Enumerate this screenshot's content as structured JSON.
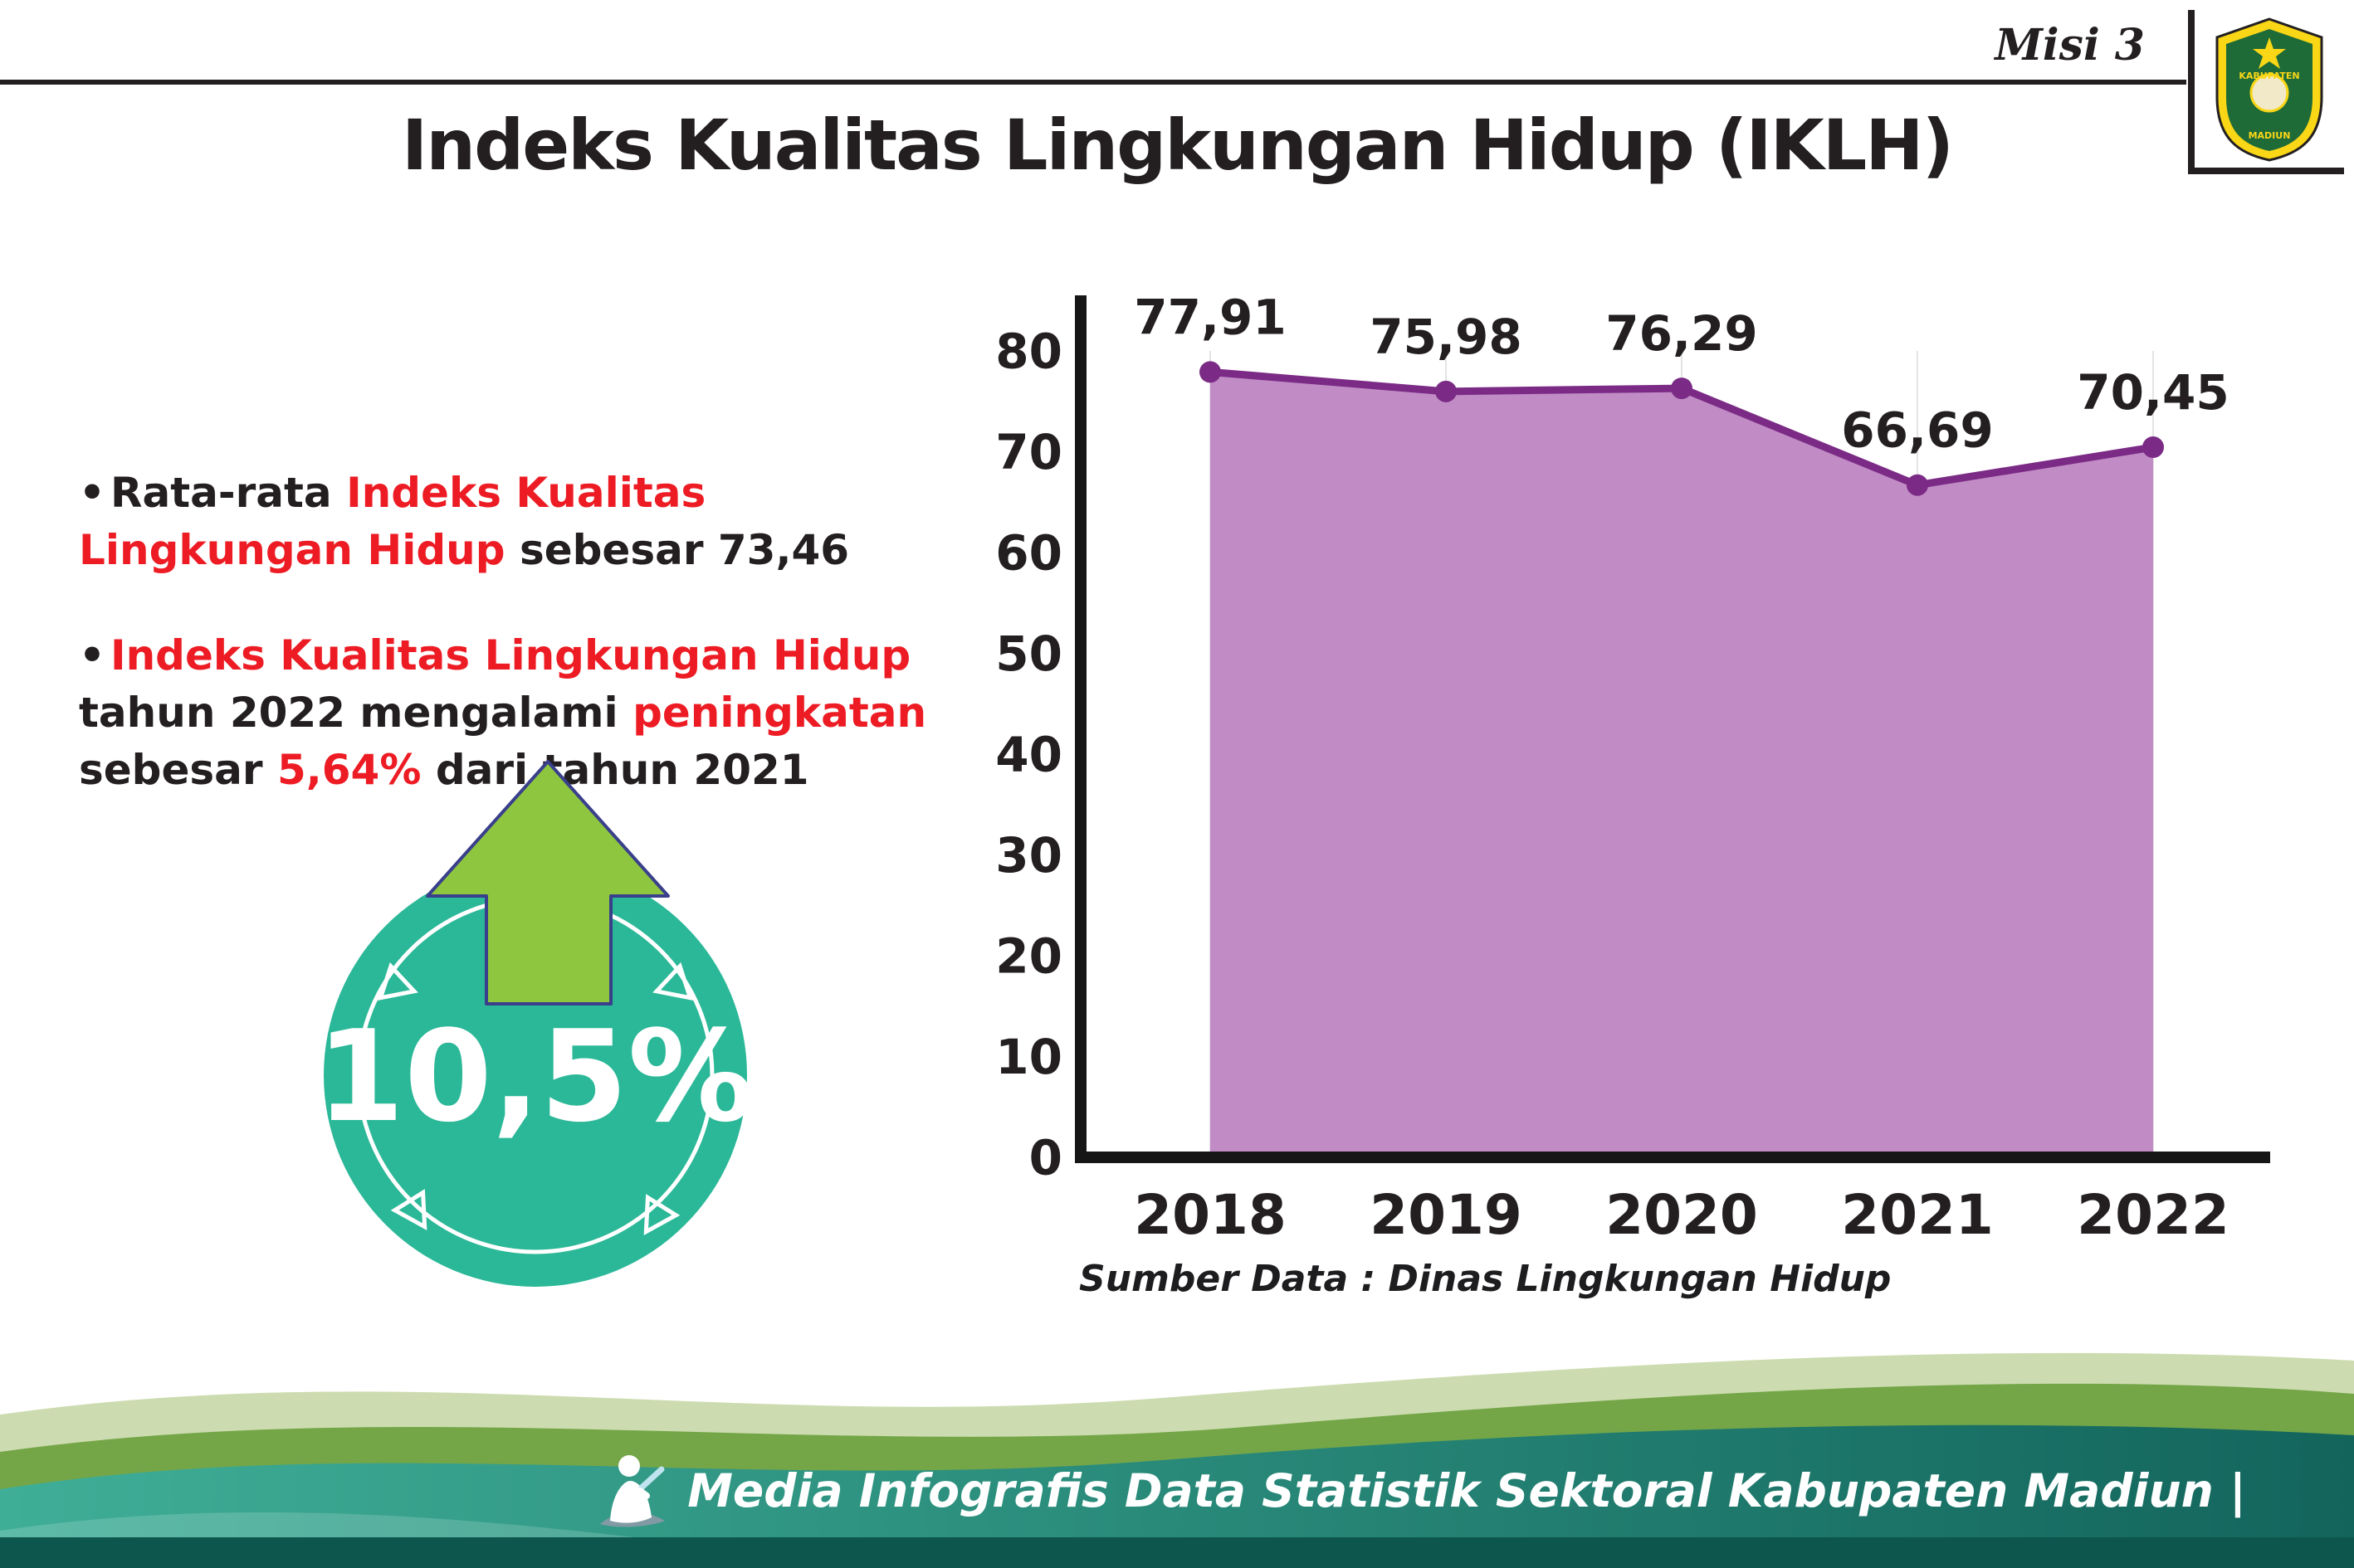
{
  "page": {
    "misi_label": "Misi 3",
    "title": "Indeks Kualitas Lingkungan Hidup (IKLH)",
    "source": "Sumber Data : Dinas Lingkungan Hidup"
  },
  "logo": {
    "top": "KABUPATEN",
    "bottom": "MADIUN"
  },
  "bullets": [
    {
      "segments": [
        {
          "text": "Rata-rata ",
          "color": "#231f20"
        },
        {
          "text": "Indeks Kualitas Lingkungan Hidup",
          "color": "#ed1c24"
        },
        {
          "text": " sebesar 73,46",
          "color": "#231f20"
        }
      ]
    },
    {
      "segments": [
        {
          "text": "Indeks Kualitas Lingkungan Hidup",
          "color": "#ed1c24"
        },
        {
          "text": " tahun 2022 mengalami ",
          "color": "#231f20"
        },
        {
          "text": "peningkatan",
          "color": "#ed1c24"
        },
        {
          "text": " sebesar ",
          "color": "#231f20"
        },
        {
          "text": "5,64%",
          "color": "#ed1c24"
        },
        {
          "text": " dari tahun 2021",
          "color": "#231f20"
        }
      ]
    }
  ],
  "badge": {
    "value": "10,5%",
    "circle_color": "#2bb898",
    "arrow_color": "#8ec63f",
    "arrow_outline": "#3a3f8c"
  },
  "chart_data": {
    "type": "area",
    "categories": [
      "2018",
      "2019",
      "2020",
      "2021",
      "2022"
    ],
    "values": [
      77.91,
      75.98,
      76.29,
      66.69,
      70.45
    ],
    "labels": [
      "77,91",
      "75,98",
      "76,29",
      "66,69",
      "70,45"
    ],
    "title": "",
    "xlabel": "",
    "ylabel": "",
    "ylim": [
      0,
      80
    ],
    "yticks": [
      0,
      10,
      20,
      30,
      40,
      50,
      60,
      70,
      80
    ],
    "grid": "vertical-light",
    "legend": "none",
    "line_color": "#7b2b85",
    "fill_color": "#c18cc6",
    "axis_color": "#161616",
    "label_color": "#231f20"
  },
  "footer": {
    "text": "Media Infografis Data Statistik Sektoral Kabupaten Madiun |"
  },
  "icons": {
    "writer_icon": "person-writing",
    "crest_icon": "kabupaten-madiun-crest"
  },
  "colors": {
    "accent_red": "#ed1c24",
    "badge_teal": "#2bb898",
    "arrow_green": "#8ec63f",
    "line_purple": "#7b2b85",
    "fill_purple": "#c18cc6",
    "footer_pale_green": "#cddcb0",
    "footer_green": "#74a648",
    "footer_teal_dark": "#0c564d"
  }
}
